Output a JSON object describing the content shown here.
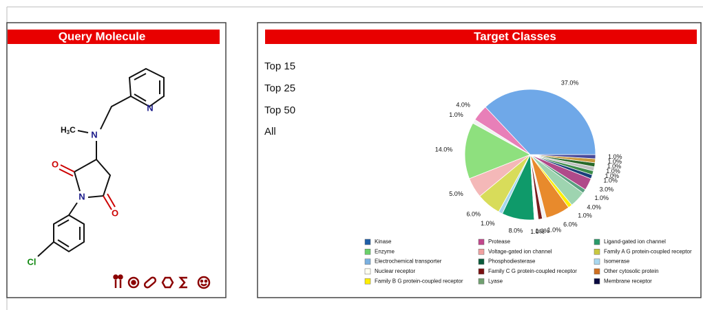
{
  "query": {
    "title": "Query Molecule",
    "atoms": [
      "H",
      "3",
      "C",
      "N",
      "N",
      "O",
      "O",
      "N",
      "Cl"
    ]
  },
  "target": {
    "title": "Target Classes",
    "links": [
      "Top 15",
      "Top 25",
      "Top 50",
      "All"
    ]
  },
  "chart_data": {
    "type": "pie",
    "values": [
      37,
      4,
      1,
      14,
      5,
      6,
      1,
      8,
      1,
      1,
      1,
      6,
      1,
      4,
      1,
      3,
      1,
      1,
      1,
      1,
      1,
      1
    ],
    "value_labels": [
      "37.0%",
      "4.0%",
      "1.0%",
      "14.0%",
      "5.0%",
      "6.0%",
      "1.0%",
      "8.0%",
      "1.0%",
      "1.0%",
      "1.0%",
      "6.0%",
      "1.0%",
      "4.0%",
      "1.0%",
      "3.0%",
      "1.0%",
      "1.0%",
      "1.0%",
      "1.0%",
      "1.0%",
      "1.0%"
    ],
    "colors": [
      "#6fa8e8",
      "#e87fb8",
      "#f2f2f2",
      "#8ee07e",
      "#f4b8b8",
      "#d8dc5a",
      "#a6d6ee",
      "#0f9a6a",
      "#ffffff",
      "#7a1e1e",
      "#f3f3f3",
      "#e88a2c",
      "#ffee00",
      "#9ed4b0",
      "#5aa080",
      "#b04a8a",
      "#1b3f7a",
      "#3c8c4a",
      "#c0c0c0",
      "#2a6a2a",
      "#c89a40",
      "#4a4a9a"
    ],
    "legend": [
      {
        "name": "Kinase",
        "color": "#1f5fa8"
      },
      {
        "name": "Protease",
        "color": "#c2468c"
      },
      {
        "name": "Ligand-gated ion channel",
        "color": "#2a9a6a"
      },
      {
        "name": "Enzyme",
        "color": "#6ad06a"
      },
      {
        "name": "Voltage-gated ion channel",
        "color": "#f0a0a0"
      },
      {
        "name": "Family A G protein-coupled receptor",
        "color": "#c8c840"
      },
      {
        "name": "Electrochemical transporter",
        "color": "#7ab0e0"
      },
      {
        "name": "Phosphodiesterase",
        "color": "#0a5a3a"
      },
      {
        "name": "Isomerase",
        "color": "#a8d8f0"
      },
      {
        "name": "Nuclear receptor",
        "color": "#fffff0"
      },
      {
        "name": "Family C G protein-coupled receptor",
        "color": "#7a1010"
      },
      {
        "name": "Other cytosolic protein",
        "color": "#d07020"
      },
      {
        "name": "Family B G protein-coupled receptor",
        "color": "#ffee00"
      },
      {
        "name": "Lyase",
        "color": "#70a070"
      },
      {
        "name": "Membrane receptor",
        "color": "#0a0a40"
      }
    ]
  }
}
